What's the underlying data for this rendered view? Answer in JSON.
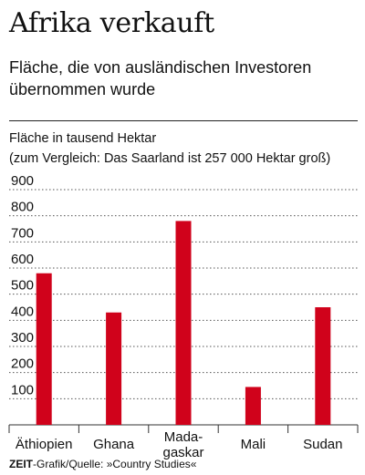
{
  "header": {
    "title": "Afrika verkauft",
    "subtitle": "Fläche, die von ausländischen Investoren übernommen wurde",
    "unit_note": "Fläche in tausend Hektar",
    "comparison_note": "(zum Vergleich: Das Saarland ist 257 000 Hektar groß)"
  },
  "footer": {
    "source_brand": "ZEIT",
    "source_text": "-Grafik/Quelle: »Country Studies«"
  },
  "colors": {
    "bar": "#d0021b",
    "grid": "#555555",
    "axis": "#333333"
  },
  "chart_data": {
    "type": "bar",
    "categories": [
      "Äthiopien",
      "Ghana",
      "Mada-\ngaskar",
      "Mali",
      "Sudan"
    ],
    "values": [
      580,
      430,
      780,
      145,
      450
    ],
    "title": "Afrika verkauft",
    "xlabel": "",
    "ylabel": "Fläche in tausend Hektar",
    "ylim": [
      0,
      900
    ],
    "yticks": [
      100,
      200,
      300,
      400,
      500,
      600,
      700,
      800,
      900
    ],
    "grid": "dotted horizontal"
  }
}
